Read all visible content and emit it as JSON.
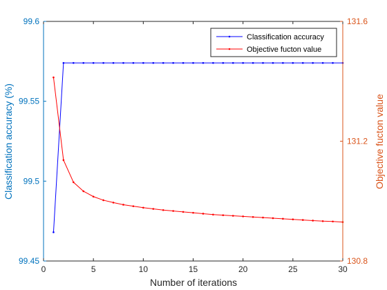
{
  "chart_data": {
    "type": "line",
    "title": "",
    "xlabel": "Number of iterations",
    "ylabel_left": "Classification accuracy (%)",
    "ylabel_right": "Objective fucton value",
    "xlim": [
      0,
      30
    ],
    "ylim_left": [
      99.45,
      99.6
    ],
    "ylim_right": [
      130.8,
      131.6
    ],
    "x_ticks": [
      "0",
      "5",
      "10",
      "15",
      "20",
      "25",
      "30"
    ],
    "y_left_ticks": [
      "99.45",
      "99.5",
      "99.55",
      "99.6"
    ],
    "y_right_ticks": [
      "130.8",
      "131.2",
      "131.6"
    ],
    "grid": false,
    "legend_position": "top-right",
    "colors": {
      "left_axis": "#0072BD",
      "right_axis": "#D95319",
      "accuracy": "#0000FF",
      "objective": "#FF0000",
      "axes_frame": "#262626"
    },
    "x": [
      1,
      2,
      3,
      4,
      5,
      6,
      7,
      8,
      9,
      10,
      11,
      12,
      13,
      14,
      15,
      16,
      17,
      18,
      19,
      20,
      21,
      22,
      23,
      24,
      25,
      26,
      27,
      28,
      29,
      30
    ],
    "series": [
      {
        "name": "Classification accuracy",
        "axis": "left",
        "values": [
          99.468,
          99.574,
          99.574,
          99.574,
          99.574,
          99.574,
          99.574,
          99.574,
          99.574,
          99.574,
          99.574,
          99.574,
          99.574,
          99.574,
          99.574,
          99.574,
          99.574,
          99.574,
          99.574,
          99.574,
          99.574,
          99.574,
          99.574,
          99.574,
          99.574,
          99.574,
          99.574,
          99.574,
          99.574,
          99.574
        ]
      },
      {
        "name": "Objective fucton value",
        "axis": "right",
        "values": [
          131.413,
          131.137,
          131.063,
          131.033,
          131.015,
          131.003,
          130.995,
          130.988,
          130.983,
          130.978,
          130.974,
          130.97,
          130.967,
          130.964,
          130.961,
          130.958,
          130.955,
          130.953,
          130.951,
          130.949,
          130.947,
          130.945,
          130.943,
          130.941,
          130.939,
          130.937,
          130.935,
          130.933,
          130.932,
          130.93
        ]
      }
    ]
  }
}
